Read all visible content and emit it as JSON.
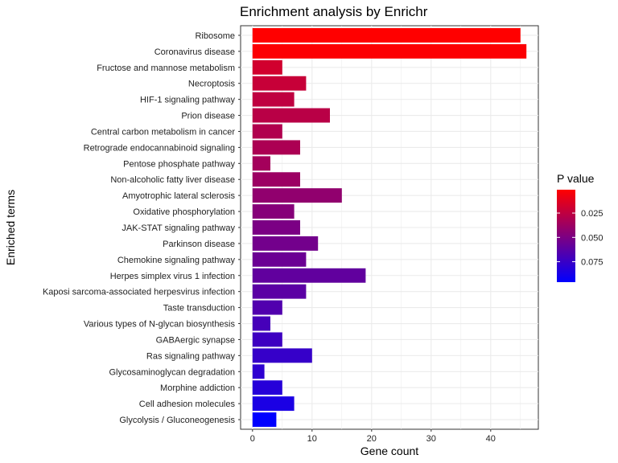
{
  "chart_data": {
    "type": "bar",
    "orientation": "horizontal",
    "title": "Enrichment analysis by Enrichr",
    "xlabel": "Gene count",
    "ylabel": "Enriched terms",
    "xlim": [
      -2,
      48
    ],
    "xticks": [
      0,
      10,
      20,
      30,
      40
    ],
    "grid": true,
    "legend": {
      "title": "P value",
      "position": "right",
      "ticks": [
        0.025,
        0.05,
        0.075
      ],
      "range": [
        0.001,
        0.096
      ],
      "low_color": "#ff0000",
      "high_color": "#0000ff"
    },
    "categories": [
      "Ribosome",
      "Coronavirus disease",
      "Fructose and mannose metabolism",
      "Necroptosis",
      "HIF-1 signaling pathway",
      "Prion disease",
      "Central carbon metabolism in cancer",
      "Retrograde endocannabinoid signaling",
      "Pentose phosphate pathway",
      "Non-alcoholic fatty liver disease",
      "Amyotrophic lateral sclerosis",
      "Oxidative phosphorylation",
      "JAK-STAT signaling pathway",
      "Parkinson disease",
      "Chemokine signaling pathway",
      "Herpes simplex virus 1 infection",
      "Kaposi sarcoma-associated herpesvirus infection",
      "Taste transduction",
      "Various types of N-glycan biosynthesis",
      "GABAergic synapse",
      "Ras signaling pathway",
      "Glycosaminoglycan degradation",
      "Morphine addiction",
      "Cell adhesion molecules",
      "Glycolysis / Gluconeogenesis"
    ],
    "values": [
      45,
      46,
      5,
      9,
      7,
      13,
      5,
      8,
      3,
      8,
      15,
      7,
      8,
      11,
      9,
      19,
      9,
      5,
      3,
      5,
      10,
      2,
      5,
      7,
      4
    ],
    "p_values": [
      0.001,
      0.002,
      0.018,
      0.022,
      0.025,
      0.027,
      0.03,
      0.032,
      0.035,
      0.038,
      0.042,
      0.046,
      0.05,
      0.053,
      0.056,
      0.06,
      0.062,
      0.066,
      0.07,
      0.073,
      0.076,
      0.079,
      0.082,
      0.086,
      0.096
    ]
  }
}
